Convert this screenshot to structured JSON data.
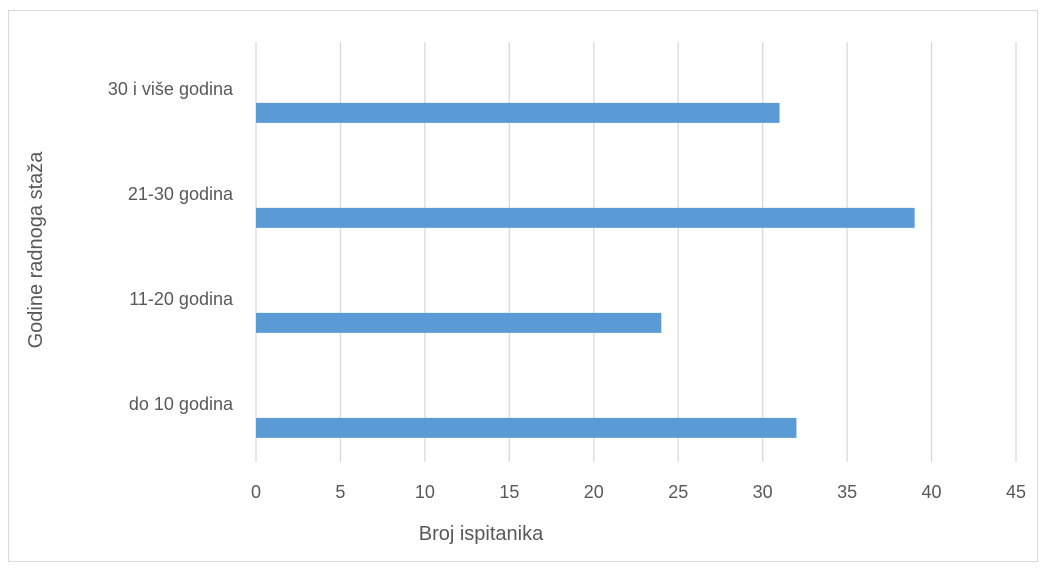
{
  "chart_data": {
    "type": "bar",
    "orientation": "horizontal",
    "categories": [
      "do 10 godina",
      "11-20 godina",
      "21-30 godina",
      "30 i više godina"
    ],
    "values": [
      32,
      24,
      39,
      31
    ],
    "xlabel": "Broj ispitanika",
    "ylabel": "Godine radnoga staža",
    "xlim": [
      0,
      45
    ],
    "xticks": [
      "0",
      "5",
      "10",
      "15",
      "20",
      "25",
      "30",
      "35",
      "40",
      "45"
    ],
    "grid": true,
    "legend": "none",
    "bar_color": "#5b9bd5",
    "grid_color": "#d9d9d9",
    "text_color": "#595959"
  }
}
